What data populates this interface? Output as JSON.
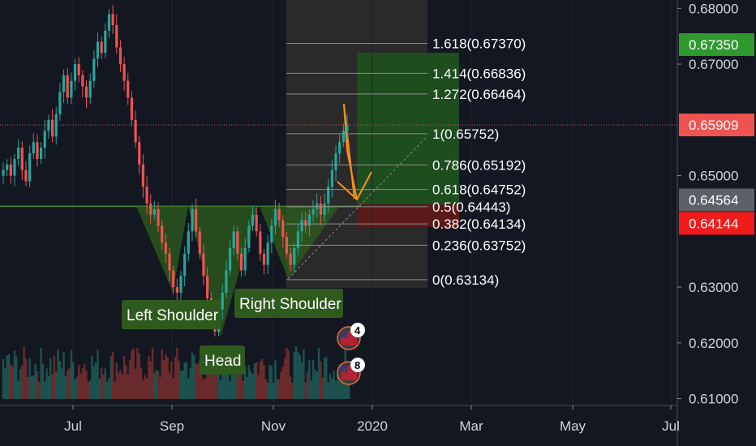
{
  "colors": {
    "background": "#131722",
    "up": "#26a69a",
    "down": "#ef5350",
    "pattern_fill": "#2e5f1c",
    "grid": "#3a3a3a"
  },
  "chart_data": {
    "type": "candlestick",
    "instrument_hint": "currency pair, daily candles",
    "ylim": [
      0.6095,
      0.6815
    ],
    "y_ticks": [
      "0.68000",
      "0.67000",
      "0.65000",
      "0.63000",
      "0.62000",
      "0.61000"
    ],
    "y_tick_values": [
      0.68,
      0.67,
      0.65,
      0.63,
      0.62,
      0.61
    ],
    "x_labels": [
      "Jul",
      "Sep",
      "Nov",
      "2020",
      "Mar",
      "May",
      "Jul"
    ],
    "price_tags": [
      {
        "label": "0.67350",
        "value": 0.6735,
        "color": "#2e9a2e"
      },
      {
        "label": "0.65909",
        "value": 0.65909,
        "color": "#ef5350"
      },
      {
        "label": "0.64564",
        "value": 0.64564,
        "color": "#5d6066"
      },
      {
        "label": "0.64144",
        "value": 0.64144,
        "color": "#f21b1b"
      }
    ],
    "fibonacci": [
      {
        "label": "1.618(0.67370)",
        "value": 0.6737
      },
      {
        "label": "1.414(0.66836)",
        "value": 0.66836
      },
      {
        "label": "1.272(0.66464)",
        "value": 0.66464
      },
      {
        "label": "1(0.65752)",
        "value": 0.65752
      },
      {
        "label": "0.786(0.65192)",
        "value": 0.65192
      },
      {
        "label": "0.618(0.64752)",
        "value": 0.64752
      },
      {
        "label": "0.5(0.64443)",
        "value": 0.64443
      },
      {
        "label": "0.382(0.64134)",
        "value": 0.64134
      },
      {
        "label": "0.236(0.63752)",
        "value": 0.63752
      },
      {
        "label": "0(0.63134)",
        "value": 0.63134
      }
    ],
    "neckline": 0.6445,
    "annotations": [
      "Left Shoulder",
      "Head",
      "Right Shoulder"
    ],
    "events": [
      {
        "label": "4",
        "flag": "us-flag-icon"
      },
      {
        "label": "8",
        "flag": "us-flag-icon"
      }
    ],
    "series": [
      {
        "name": "",
        "values": [
          0.651,
          0.652,
          0.65,
          0.653,
          0.655,
          0.651,
          0.649,
          0.654,
          0.656,
          0.653,
          0.655,
          0.658,
          0.66,
          0.657,
          0.661,
          0.665,
          0.668,
          0.664,
          0.667,
          0.67,
          0.668,
          0.666,
          0.664,
          0.667,
          0.671,
          0.674,
          0.672,
          0.676,
          0.679,
          0.677,
          0.673,
          0.67,
          0.667,
          0.664,
          0.66,
          0.656,
          0.652,
          0.648,
          0.645,
          0.643,
          0.644,
          0.641,
          0.638,
          0.636,
          0.633,
          0.63,
          0.629,
          0.632,
          0.636,
          0.64,
          0.644,
          0.64,
          0.636,
          0.632,
          0.628,
          0.625,
          0.622,
          0.626,
          0.629,
          0.633,
          0.637,
          0.64,
          0.636,
          0.633,
          0.637,
          0.641,
          0.643,
          0.64,
          0.636,
          0.634,
          0.638,
          0.641,
          0.644,
          0.642,
          0.639,
          0.636,
          0.634,
          0.637,
          0.64,
          0.642,
          0.641,
          0.643,
          0.644,
          0.645,
          0.643,
          0.645,
          0.648,
          0.651,
          0.654,
          0.656,
          0.658,
          0.659
        ]
      }
    ]
  }
}
